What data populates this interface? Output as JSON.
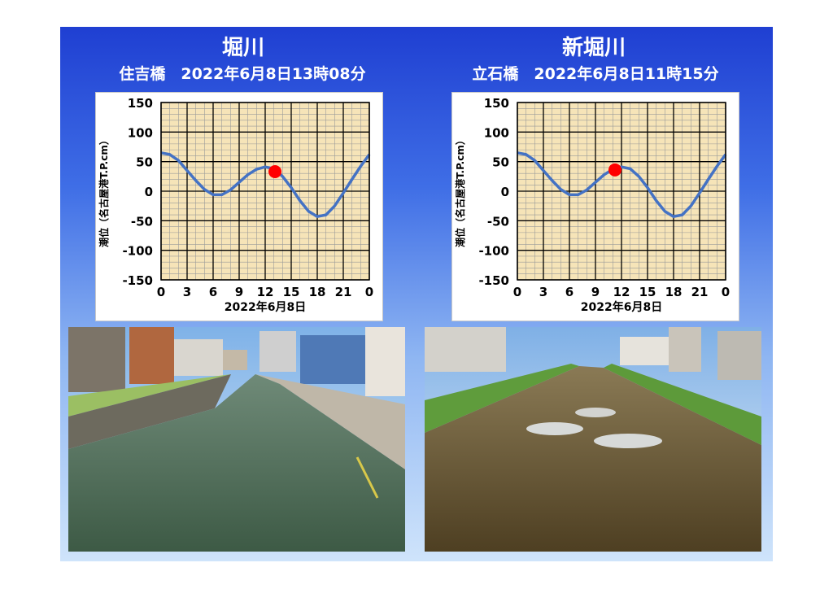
{
  "left": {
    "river": "堀川",
    "bridge_time": "住吉橋　2022年6月8日13時08分"
  },
  "right": {
    "river": "新堀川",
    "bridge_time": "立石橋　2022年6月8日11時15分"
  },
  "chart_data": [
    {
      "type": "line",
      "title": "",
      "xlabel": "2022年6月8日",
      "ylabel": "潮位（名古屋港T.P.cm）",
      "xlim": [
        0,
        24
      ],
      "ylim": [
        -150,
        150
      ],
      "x_tick_labels": [
        "0",
        "3",
        "6",
        "9",
        "12",
        "15",
        "18",
        "21",
        "0"
      ],
      "y_tick_labels": [
        "150",
        "100",
        "50",
        "0",
        "-50",
        "-100",
        "-150"
      ],
      "grid": true,
      "series": [
        {
          "values_x": [
            0,
            1,
            2,
            3,
            4,
            5,
            6,
            7,
            8,
            9,
            10,
            11,
            12,
            13,
            14,
            15,
            16,
            17,
            18,
            19,
            20,
            21,
            22,
            23,
            24
          ],
          "values_y": [
            65,
            62,
            52,
            35,
            18,
            3,
            -6,
            -6,
            2,
            15,
            28,
            37,
            41,
            38,
            25,
            6,
            -16,
            -34,
            -43,
            -40,
            -25,
            -3,
            20,
            42,
            62
          ]
        }
      ],
      "marker": {
        "x": 13.13,
        "y": 33,
        "color": "#ff0000"
      },
      "line_color": "#4472c4"
    },
    {
      "type": "line",
      "title": "",
      "xlabel": "2022年6月8日",
      "ylabel": "潮位（名古屋港T.P.cm）",
      "xlim": [
        0,
        24
      ],
      "ylim": [
        -150,
        150
      ],
      "x_tick_labels": [
        "0",
        "3",
        "6",
        "9",
        "12",
        "15",
        "18",
        "21",
        "0"
      ],
      "y_tick_labels": [
        "150",
        "100",
        "50",
        "0",
        "-50",
        "-100",
        "-150"
      ],
      "grid": true,
      "series": [
        {
          "values_x": [
            0,
            1,
            2,
            3,
            4,
            5,
            6,
            7,
            8,
            9,
            10,
            11,
            12,
            13,
            14,
            15,
            16,
            17,
            18,
            19,
            20,
            21,
            22,
            23,
            24
          ],
          "values_y": [
            65,
            62,
            52,
            35,
            18,
            3,
            -6,
            -6,
            2,
            15,
            28,
            37,
            41,
            38,
            25,
            6,
            -16,
            -34,
            -43,
            -40,
            -25,
            -3,
            20,
            42,
            62
          ]
        }
      ],
      "marker": {
        "x": 11.25,
        "y": 36,
        "color": "#ff0000"
      },
      "line_color": "#4472c4"
    }
  ],
  "colors": {
    "plot_bg": "#f6e4b8",
    "grid_minor": "#9a9a9a",
    "grid_major": "#000000"
  }
}
